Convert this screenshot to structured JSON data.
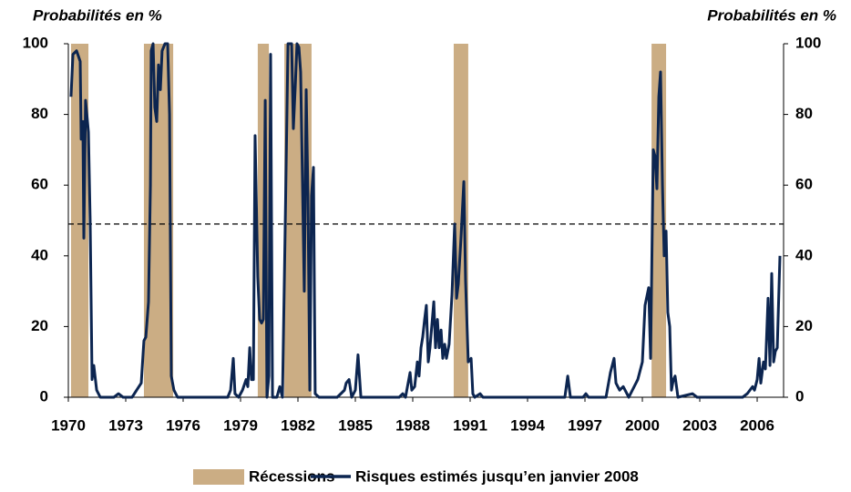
{
  "chart_data": {
    "type": "line",
    "ylabel": "Probabilités en %",
    "y2label": "Probabilités en %",
    "xlim": [
      1970,
      2007.38
    ],
    "xticks": [
      1970,
      1973,
      1976,
      1979,
      1982,
      1985,
      1988,
      1991,
      1994,
      1997,
      2000,
      2003,
      2006
    ],
    "ylim": [
      0,
      100
    ],
    "yticks": [
      0,
      20,
      40,
      60,
      80,
      100
    ],
    "y2lim": [
      0,
      100
    ],
    "y2ticks": [
      0,
      20,
      40,
      60,
      80,
      100
    ],
    "reference_line": 49,
    "recessions": {
      "name": "Récessions",
      "color": "#cbad84",
      "periods": [
        [
          1970.14,
          1971.05
        ],
        [
          1973.95,
          1975.48
        ],
        [
          1979.9,
          1980.48
        ],
        [
          1981.29,
          1982.71
        ],
        [
          1990.14,
          1990.9
        ],
        [
          2000.48,
          2001.24
        ]
      ]
    },
    "x": [
      1970.14,
      1970.24,
      1970.43,
      1970.62,
      1970.67,
      1970.76,
      1970.81,
      1970.9,
      1971.05,
      1971.14,
      1971.24,
      1971.33,
      1971.48,
      1971.67,
      1972.38,
      1972.62,
      1972.86,
      1973.33,
      1973.57,
      1973.81,
      1973.95,
      1974.05,
      1974.19,
      1974.29,
      1974.33,
      1974.43,
      1974.52,
      1974.62,
      1974.71,
      1974.81,
      1974.9,
      1975.05,
      1975.19,
      1975.29,
      1975.38,
      1975.52,
      1975.71,
      1977.86,
      1978.33,
      1978.48,
      1978.62,
      1978.71,
      1978.9,
      1979.1,
      1979.29,
      1979.38,
      1979.48,
      1979.57,
      1979.67,
      1979.76,
      1979.9,
      1980.0,
      1980.1,
      1980.19,
      1980.29,
      1980.38,
      1980.48,
      1980.57,
      1980.67,
      1980.76,
      1980.9,
      1981.05,
      1981.19,
      1981.33,
      1981.48,
      1981.57,
      1981.67,
      1981.76,
      1981.86,
      1981.95,
      1982.05,
      1982.14,
      1982.24,
      1982.33,
      1982.43,
      1982.52,
      1982.62,
      1982.71,
      1982.81,
      1982.9,
      1983.1,
      1984.05,
      1984.43,
      1984.52,
      1984.67,
      1984.81,
      1985.0,
      1985.14,
      1985.29,
      1985.48,
      1987.29,
      1987.48,
      1987.62,
      1987.86,
      1987.95,
      1988.1,
      1988.24,
      1988.33,
      1988.43,
      1988.52,
      1988.62,
      1988.71,
      1988.81,
      1988.9,
      1989.1,
      1989.19,
      1989.29,
      1989.38,
      1989.48,
      1989.57,
      1989.67,
      1989.76,
      1989.9,
      1990.05,
      1990.19,
      1990.29,
      1990.38,
      1990.52,
      1990.67,
      1990.76,
      1990.9,
      1991.05,
      1991.14,
      1991.24,
      1991.52,
      1991.67,
      1995.0,
      1995.95,
      1996.1,
      1996.24,
      1996.9,
      1997.05,
      1997.19,
      1998.1,
      1998.33,
      1998.52,
      1998.62,
      1998.81,
      1999.0,
      1999.29,
      1999.76,
      2000.0,
      2000.14,
      2000.33,
      2000.43,
      2000.57,
      2000.67,
      2000.76,
      2000.86,
      2000.95,
      2001.05,
      2001.14,
      2001.24,
      2001.33,
      2001.43,
      2001.52,
      2001.62,
      2001.71,
      2001.86,
      2002.62,
      2002.86,
      2005.24,
      2005.48,
      2005.62,
      2005.76,
      2005.86,
      2006.0,
      2006.1,
      2006.19,
      2006.33,
      2006.43,
      2006.57,
      2006.67,
      2006.76,
      2006.86,
      2006.95,
      2007.05,
      2007.19
    ],
    "series": [
      {
        "name": "Risques estimés jusqu’en janvier 2008",
        "color": "#0c2550",
        "values": [
          85,
          97,
          98,
          95,
          73,
          78,
          45,
          84,
          75,
          50,
          5,
          9,
          2,
          0,
          0,
          1,
          0,
          0,
          2,
          4,
          16,
          17,
          27,
          60,
          98,
          100,
          82,
          78,
          94,
          87,
          98,
          100,
          100,
          80,
          6,
          2,
          0,
          0,
          0,
          2,
          11,
          1,
          0,
          2,
          5,
          3,
          14,
          5,
          5,
          74,
          34,
          22,
          21,
          22,
          84,
          0,
          6,
          97,
          0,
          0,
          0,
          3,
          0,
          47,
          100,
          100,
          100,
          76,
          88,
          100,
          99,
          92,
          60,
          30,
          87,
          58,
          2,
          57,
          65,
          1,
          0,
          0,
          2,
          4,
          5,
          0,
          2,
          12,
          0,
          0,
          0,
          1,
          0,
          7,
          2,
          3,
          10,
          6,
          14,
          17,
          22,
          26,
          10,
          14,
          27,
          14,
          22,
          14,
          19,
          11,
          15,
          11,
          15,
          29,
          49,
          28,
          32,
          45,
          61,
          33,
          10,
          11,
          1,
          0,
          1,
          0,
          0,
          0,
          6,
          0,
          0,
          1,
          0,
          0,
          7,
          11,
          4,
          2,
          3,
          0,
          5,
          10,
          26,
          31,
          11,
          70,
          68,
          59,
          85,
          92,
          60,
          40,
          47,
          24,
          20,
          2,
          5,
          6,
          0,
          1,
          0,
          0,
          1,
          2,
          3,
          2,
          5,
          11,
          4,
          10,
          8,
          28,
          9,
          35,
          10,
          13,
          14,
          40
        ]
      }
    ]
  }
}
